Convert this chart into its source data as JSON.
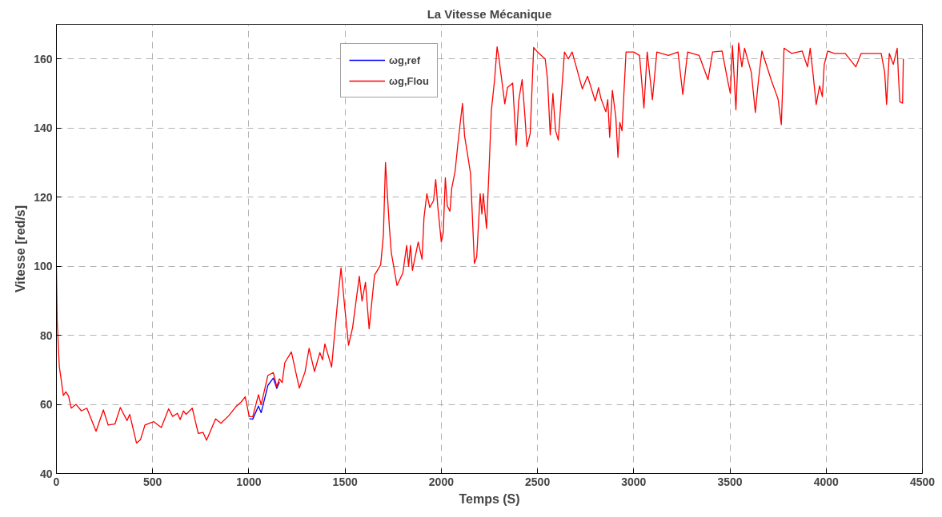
{
  "chart_data": {
    "type": "line",
    "title": "La Vitesse Mécanique",
    "xlabel": "Temps (S)",
    "ylabel": "Vitesse [red/s]",
    "x": [
      0,
      4,
      15,
      36,
      49,
      63,
      77,
      102,
      130,
      158,
      206,
      244,
      269,
      304,
      332,
      367,
      381,
      416,
      437,
      460,
      506,
      545,
      583,
      604,
      629,
      643,
      660,
      674,
      706,
      737,
      762,
      780,
      827,
      855,
      897,
      932,
      960,
      981,
      1002,
      1020,
      1050,
      1064,
      1099,
      1127,
      1145,
      1159,
      1173,
      1187,
      1221,
      1262,
      1292,
      1313,
      1341,
      1369,
      1383,
      1395,
      1430,
      1462,
      1479,
      1497,
      1518,
      1539,
      1574,
      1588,
      1606,
      1625,
      1653,
      1685,
      1699,
      1710,
      1730,
      1740,
      1770,
      1800,
      1820,
      1830,
      1840,
      1850,
      1880,
      1900,
      1910,
      1925,
      1940,
      1960,
      1971,
      1982,
      2000,
      2010,
      2021,
      2031,
      2045,
      2054,
      2072,
      2086,
      2110,
      2121,
      2138,
      2152,
      2172,
      2184,
      2202,
      2211,
      2218,
      2235,
      2249,
      2260,
      2277,
      2290,
      2300,
      2330,
      2344,
      2371,
      2389,
      2402,
      2420,
      2434,
      2445,
      2462,
      2480,
      2500,
      2520,
      2540,
      2552,
      2566,
      2580,
      2594,
      2608,
      2622,
      2640,
      2660,
      2680,
      2700,
      2733,
      2760,
      2800,
      2817,
      2830,
      2855,
      2865,
      2875,
      2889,
      2907,
      2918,
      2928,
      2939,
      2960,
      3000,
      3030,
      3053,
      3070,
      3097,
      3120,
      3180,
      3230,
      3255,
      3280,
      3340,
      3386,
      3410,
      3459,
      3488,
      3502,
      3513,
      3531,
      3545,
      3562,
      3576,
      3611,
      3632,
      3648,
      3666,
      3715,
      3750,
      3767,
      3781,
      3820,
      3875,
      3903,
      3917,
      3931,
      3948,
      3966,
      3980,
      3990,
      4008,
      4043,
      4099,
      4154,
      4182,
      4237,
      4286,
      4304,
      4314,
      4328,
      4349,
      4369,
      4376,
      4383,
      4397,
      4401
    ],
    "series": [
      {
        "name": "ωg,ref",
        "color": "#0000ff",
        "x": [
          1002,
          1020,
          1050,
          1064,
          1099,
          1127,
          1145,
          1159
        ],
        "values": [
          55.9,
          55.7,
          59.5,
          57.6,
          65.5,
          67.6,
          64.6,
          66.5
        ]
      },
      {
        "name": "ωg,Flou",
        "color": "#ff0000",
        "values": [
          100,
          84,
          71,
          62.6,
          63.6,
          62.4,
          58.9,
          60,
          58.1,
          58.9,
          52.2,
          58.4,
          54,
          54.3,
          59.1,
          55.3,
          57.1,
          48.8,
          49.8,
          54,
          55,
          53.3,
          58.7,
          56.5,
          57.4,
          55.6,
          58.1,
          57.1,
          58.9,
          51.6,
          51.9,
          49.6,
          55.8,
          54.5,
          56.8,
          59.3,
          60.7,
          62.2,
          56.5,
          56.4,
          62.8,
          59.9,
          68.4,
          69.2,
          65.1,
          67.4,
          66.3,
          72.1,
          75.2,
          64.7,
          69.4,
          76.2,
          69.5,
          75,
          72.9,
          77.5,
          70.8,
          90.3,
          99.5,
          88.8,
          77.1,
          82.2,
          97.1,
          89.9,
          95.3,
          81.9,
          97.4,
          100.4,
          108.9,
          130,
          111.4,
          104,
          94.4,
          98,
          106,
          100,
          106,
          98.8,
          107,
          102,
          114,
          121,
          117,
          119,
          125.1,
          117.1,
          107,
          109.7,
          125.6,
          117.5,
          115.9,
          122.5,
          127.6,
          135.3,
          147.1,
          137.7,
          131.8,
          126.8,
          100.8,
          102.7,
          121,
          115.1,
          121,
          110.9,
          129.1,
          145,
          154,
          163.5,
          160,
          147,
          151.7,
          153,
          135,
          147.8,
          154,
          143.9,
          134.6,
          138.4,
          163.3,
          162,
          161,
          160,
          154,
          138,
          150,
          139.2,
          136.5,
          147.8,
          162,
          160,
          162,
          158,
          151.3,
          155,
          147.8,
          151.7,
          148.5,
          144.7,
          148.2,
          137.3,
          150.9,
          143.1,
          131.5,
          141.6,
          139.2,
          162,
          162,
          161,
          145.8,
          162,
          148.2,
          162,
          161,
          162,
          149.7,
          162,
          161,
          154,
          162,
          162.3,
          153.8,
          150,
          163.9,
          145.3,
          164.6,
          157.7,
          163.1,
          156.1,
          144.5,
          153.8,
          162.3,
          153.8,
          148.4,
          141,
          163.1,
          161.6,
          162.3,
          157.7,
          163.1,
          156.1,
          146.8,
          152.2,
          149.1,
          158.4,
          162.3,
          161.6,
          161.6,
          157.7,
          161.6,
          161.6,
          161.6,
          156.1,
          146.8,
          161.6,
          158.4,
          163.1,
          154.6,
          147.6,
          147.2,
          160
        ]
      }
    ],
    "xlim": [
      0,
      4500
    ],
    "ylim": [
      40,
      170
    ],
    "xticks": [
      0,
      500,
      1000,
      1500,
      2000,
      2500,
      3000,
      3500,
      4000,
      4500
    ],
    "yticks": [
      40,
      60,
      80,
      100,
      120,
      140,
      160
    ],
    "grid": true,
    "legend": "top"
  }
}
